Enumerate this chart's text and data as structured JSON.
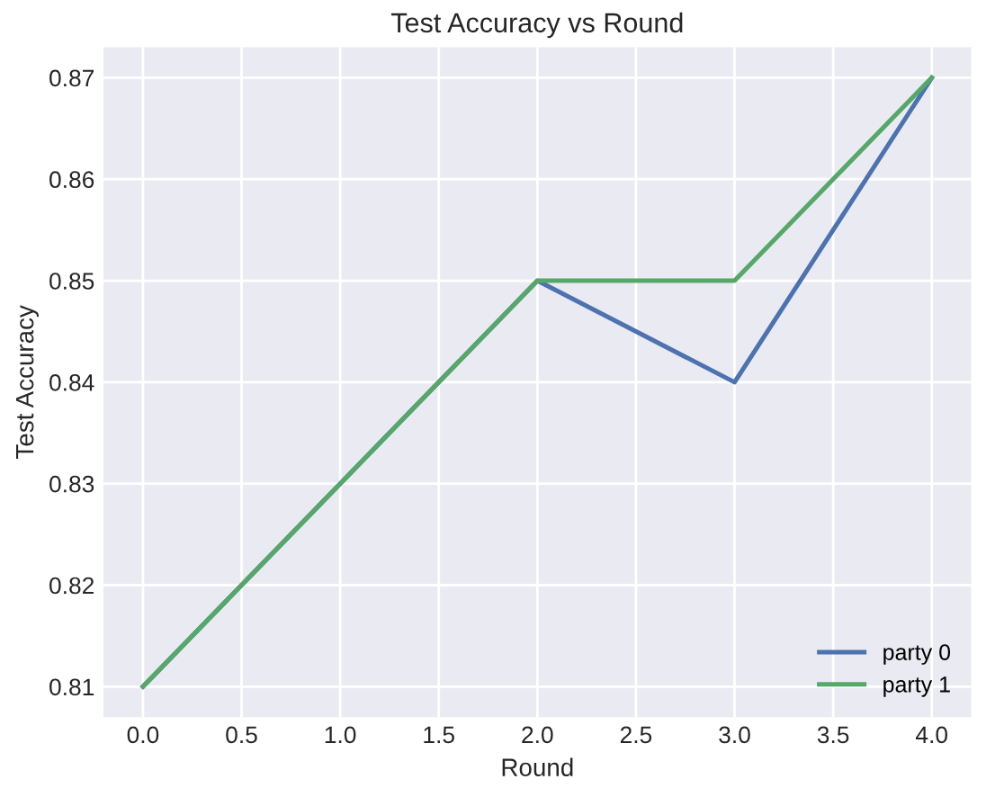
{
  "chart_data": {
    "type": "line",
    "title": "Test Accuracy vs Round",
    "xlabel": "Round",
    "ylabel": "Test Accuracy",
    "x": [
      0,
      1,
      2,
      3,
      4
    ],
    "series": [
      {
        "name": "party 0",
        "color": "#4c72b0",
        "values": [
          0.81,
          0.83,
          0.85,
          0.84,
          0.87
        ]
      },
      {
        "name": "party 1",
        "color": "#55a868",
        "values": [
          0.81,
          0.83,
          0.85,
          0.85,
          0.87
        ]
      }
    ],
    "xlim": [
      -0.2,
      4.2
    ],
    "xticks": [
      {
        "value": 0,
        "label": "0.0"
      },
      {
        "value": 0.5,
        "label": "0.5"
      },
      {
        "value": 1,
        "label": "1.0"
      },
      {
        "value": 1.5,
        "label": "1.5"
      },
      {
        "value": 2,
        "label": "2.0"
      },
      {
        "value": 2.5,
        "label": "2.5"
      },
      {
        "value": 3,
        "label": "3.0"
      },
      {
        "value": 3.5,
        "label": "3.5"
      },
      {
        "value": 4,
        "label": "4.0"
      }
    ],
    "ylim": [
      0.807,
      0.873
    ],
    "yticks": [
      0.81,
      0.82,
      0.83,
      0.84,
      0.85,
      0.86,
      0.87
    ],
    "grid": true,
    "legend": "bottom right",
    "marker": "none",
    "line_style": "solid"
  }
}
